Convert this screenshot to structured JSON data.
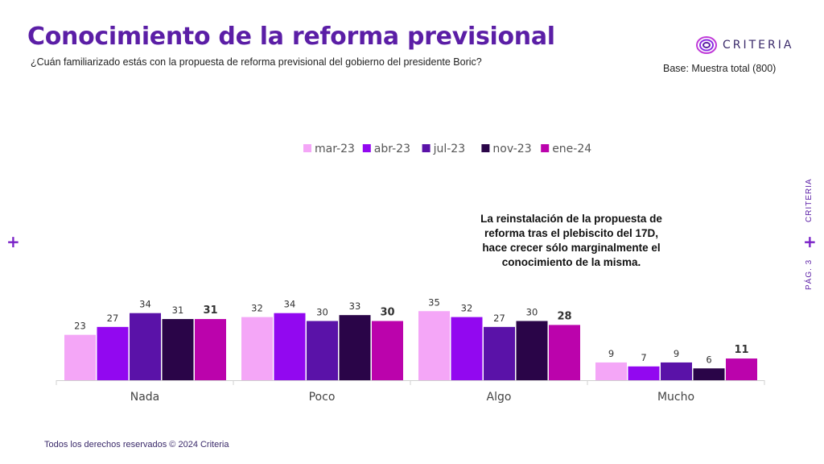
{
  "header": {
    "title": "Conocimiento de la reforma previsional",
    "subtitle": "¿Cuán familiarizado estás con la propuesta de reforma previsional del gobierno del presidente Boric?",
    "base": "Base: Muestra total (800)"
  },
  "logo": {
    "text": "CRITERIA",
    "icon": "criteria-logo-icon"
  },
  "side": {
    "brand": "CRITERIA",
    "page": "PÁG. 3"
  },
  "annotation": "La reinstalación de la propuesta de reforma tras el plebiscito del 17D, hace crecer sólo marginalmente el conocimiento de la misma.",
  "footer": {
    "text": "Todos los derechos reservados © 2024 Criteria"
  },
  "colors": {
    "title": "#5b1ea6",
    "accent": "#7a22c7"
  },
  "chart_data": {
    "type": "bar",
    "categories": [
      "Nada",
      "Poco",
      "Algo",
      "Mucho"
    ],
    "series": [
      {
        "name": "mar-23",
        "color": "#f4a6f7",
        "values": [
          23,
          32,
          35,
          9
        ]
      },
      {
        "name": "abr-23",
        "color": "#9208f0",
        "values": [
          27,
          34,
          32,
          7
        ]
      },
      {
        "name": "jul-23",
        "color": "#5a12a8",
        "values": [
          34,
          30,
          27,
          9
        ]
      },
      {
        "name": "nov-23",
        "color": "#2a0548",
        "values": [
          31,
          33,
          30,
          6
        ]
      },
      {
        "name": "ene-24",
        "color": "#bb03ac",
        "values": [
          31,
          30,
          28,
          11
        ]
      }
    ],
    "legend_position": "top-center",
    "grid": false
  }
}
